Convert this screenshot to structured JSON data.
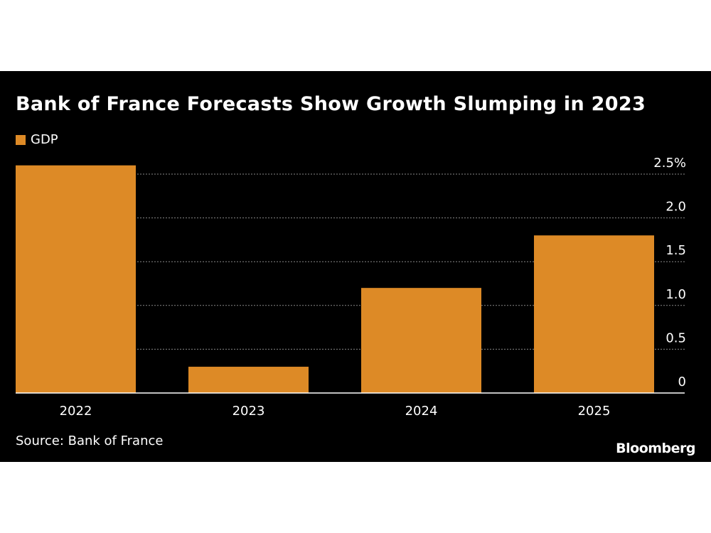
{
  "chart_data": {
    "type": "bar",
    "title": "Bank of France Forecasts Show Growth Slumping in 2023",
    "categories": [
      "2022",
      "2023",
      "2024",
      "2025"
    ],
    "series": [
      {
        "name": "GDP",
        "values": [
          2.6,
          0.3,
          1.2,
          1.8
        ],
        "color": "#dd8a26"
      }
    ],
    "ylim": [
      0,
      2.5
    ],
    "yticks": [
      0,
      0.5,
      1.0,
      1.5,
      2.0,
      2.5
    ],
    "ytick_labels": [
      "0",
      "0.5",
      "1.0",
      "1.5",
      "2.0",
      "2.5%"
    ],
    "y_axis_side": "right",
    "grid": true,
    "legend": "top-left",
    "source": "Source: Bank of France",
    "logo": "Bloomberg",
    "background": "#000000"
  }
}
